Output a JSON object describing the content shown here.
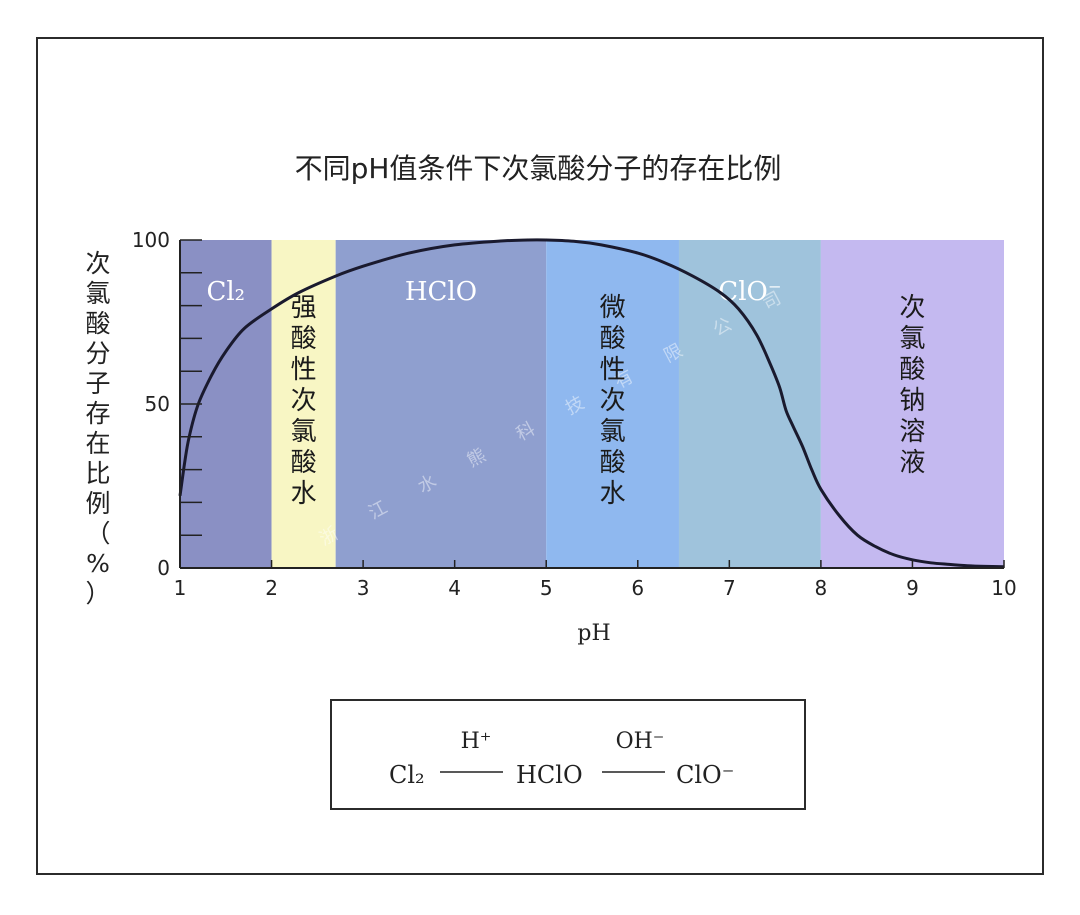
{
  "chart_data": {
    "type": "line",
    "title": "不同pH值条件下次氯酸分子的存在比例",
    "ylabel": "次氯酸分子存在比例（%）",
    "xlabel": "pH",
    "xlim": [
      1,
      10
    ],
    "ylim": [
      0,
      100
    ],
    "x_ticks": [
      "1",
      "2",
      "3",
      "4",
      "5",
      "6",
      "7",
      "8",
      "9",
      "10"
    ],
    "y_ticks": [
      "0",
      "50",
      "100"
    ],
    "grid": false,
    "regions": [
      {
        "from": 1,
        "to": 2,
        "label": "Cl₂",
        "color": "#8a90c4",
        "orientation": "horizontal"
      },
      {
        "from": 2,
        "to": 2.7,
        "label": "强酸性次氯酸水",
        "color": "#f8f6c4",
        "orientation": "vertical"
      },
      {
        "from": 2.7,
        "to": 5,
        "label": "HClO",
        "color": "#8f9fcf",
        "orientation": "horizontal"
      },
      {
        "from": 5,
        "to": 6.45,
        "label": "微酸性次氯酸水",
        "color": "#8fb8ef",
        "orientation": "vertical"
      },
      {
        "from": 6.45,
        "to": 8,
        "label": "ClO⁻",
        "color": "#9fc3dc",
        "orientation": "horizontal"
      },
      {
        "from": 8,
        "to": 10,
        "label": "次氯酸钠溶液",
        "color": "#c4b9f0",
        "orientation": "vertical"
      }
    ],
    "series": [
      {
        "color": "#1a1a2e",
        "x": [
          1.0,
          1.05,
          1.1,
          1.2,
          1.35,
          1.5,
          1.7,
          2.0,
          2.3,
          2.7,
          3.0,
          3.5,
          4.0,
          4.5,
          4.8,
          5.0,
          5.3,
          5.6,
          6.0,
          6.3,
          6.6,
          6.9,
          7.1,
          7.3,
          7.45,
          7.55,
          7.62,
          7.7,
          7.8,
          7.9,
          8.0,
          8.2,
          8.4,
          8.6,
          8.8,
          9.0,
          9.2,
          9.4,
          9.6,
          9.8,
          10.0
        ],
        "y": [
          22,
          32,
          40,
          50,
          59,
          66,
          73,
          79,
          84,
          89,
          92,
          96,
          98.5,
          99.7,
          100,
          100,
          99.6,
          98.5,
          96,
          93,
          89,
          84,
          79,
          71,
          62,
          55,
          48,
          43,
          37,
          30,
          24,
          16,
          10,
          6.5,
          4,
          2.5,
          1.6,
          1.1,
          0.7,
          0.5,
          0.4
        ]
      }
    ]
  },
  "watermark": "浙 江 水 熊 科 技 有 限 公 司",
  "equation": {
    "left": "Cl₂",
    "above_left": "H⁺",
    "middle": "HClO",
    "above_right": "OH⁻",
    "right": "ClO⁻"
  }
}
